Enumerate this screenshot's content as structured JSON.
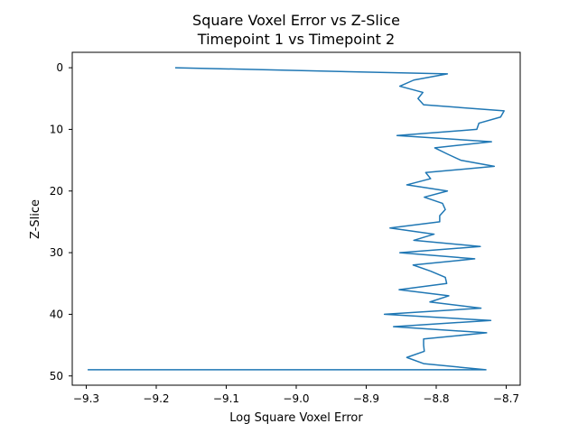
{
  "chart_data": {
    "type": "line",
    "title": "Square Voxel Error vs Z-Slice",
    "subtitle": "Timepoint 1 vs Timepoint 2",
    "xlabel": "Log Square Voxel Error",
    "ylabel": "Z-Slice",
    "xlim": [
      -9.32,
      -8.68
    ],
    "ylim": [
      51.5,
      -2.5
    ],
    "y_inverted": true,
    "grid": false,
    "x_ticks": [
      "−9.3",
      "−9.2",
      "−9.1",
      "−9.0",
      "−8.9",
      "−8.8",
      "−8.7"
    ],
    "x_tick_values": [
      -9.3,
      -9.2,
      -9.1,
      -9.0,
      -8.9,
      -8.8,
      -8.7
    ],
    "y_ticks": [
      "0",
      "10",
      "20",
      "30",
      "40",
      "50"
    ],
    "y_tick_values": [
      0,
      10,
      20,
      30,
      40,
      50
    ],
    "line_color": "#1f77b4",
    "series": [
      {
        "x": [
          -9.172,
          -8.784,
          -8.832,
          -8.852,
          -8.819,
          -8.826,
          -8.818,
          -8.703,
          -8.708,
          -8.739,
          -8.742,
          -8.856,
          -8.721,
          -8.802,
          -8.784,
          -8.765,
          -8.717,
          -8.815,
          -8.808,
          -8.842,
          -8.784,
          -8.817,
          -8.791,
          -8.787,
          -8.795,
          -8.795,
          -8.866,
          -8.803,
          -8.832,
          -8.737,
          -8.852,
          -8.745,
          -8.833,
          -8.808,
          -8.787,
          -8.785,
          -8.853,
          -8.782,
          -8.809,
          -8.736,
          -8.874,
          -8.722,
          -8.861,
          -8.728,
          -8.818,
          -8.818,
          -8.817,
          -8.842,
          -8.818,
          -8.729,
          -9.297
        ],
        "y": [
          0,
          1,
          2,
          3,
          4,
          5,
          6,
          7,
          8,
          9,
          10,
          11,
          12,
          13,
          14,
          15,
          16,
          17,
          18,
          19,
          20,
          21,
          22,
          23,
          24,
          25,
          26,
          27,
          28,
          29,
          30,
          31,
          32,
          33,
          34,
          35,
          36,
          37,
          38,
          39,
          40,
          41,
          42,
          43,
          44,
          45,
          46,
          47,
          48,
          49,
          49
        ]
      }
    ]
  }
}
